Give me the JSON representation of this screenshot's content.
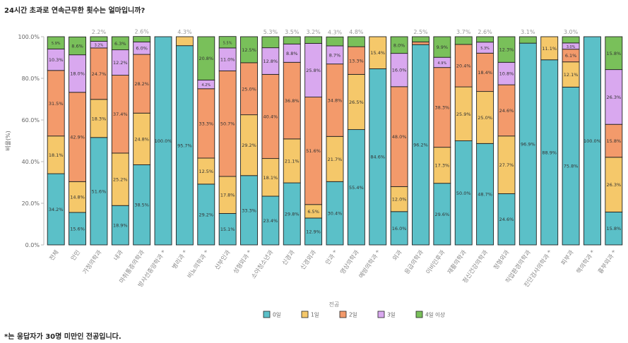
{
  "page": {
    "title": "24시간 초과로 연속근무한 횟수는 얼마입니까?",
    "footnote": "*는 응답자가 30명 미만인 전공입니다."
  },
  "chart_data": {
    "type": "bar",
    "stacked": true,
    "percent": true,
    "title": "",
    "xlabel": "전공",
    "ylabel": "비율(%)",
    "ylim": [
      0,
      100
    ],
    "y_ticks": [
      "0.0%",
      "20.0%",
      "40.0%",
      "60.0%",
      "80.0%",
      "100.0%"
    ],
    "grid": false,
    "legend_position": "bottom",
    "categories": [
      "전체",
      "안민",
      "가정의학과",
      "내과",
      "마취통증의학과",
      "방사선종양학과 *",
      "병리과 *",
      "비뇨의학과 *",
      "산부인과",
      "성형외과 *",
      "소아청소년과",
      "신경과",
      "신경외과",
      "안과 *",
      "영상의학과",
      "예방의학과 *",
      "외과",
      "응급의학과",
      "이비인후과",
      "재활의학과",
      "정신건강의학과",
      "정형외과",
      "직업환경의학과",
      "진단검사의학과 *",
      "피부과",
      "핵의학과 *",
      "흉부외과 *"
    ],
    "series": [
      {
        "name": "0일",
        "color": "#5bc0c8",
        "values": [
          34.2,
          15.6,
          51.6,
          18.9,
          38.5,
          100.0,
          95.7,
          29.2,
          15.1,
          33.3,
          23.4,
          29.8,
          12.9,
          30.4,
          55.4,
          84.6,
          16.0,
          96.2,
          29.6,
          50.0,
          48.7,
          24.6,
          96.9,
          88.9,
          75.8,
          100.0,
          15.8
        ]
      },
      {
        "name": "1일",
        "color": "#f5c86a",
        "values": [
          18.1,
          14.8,
          18.3,
          25.2,
          24.8,
          0,
          4.3,
          12.5,
          17.8,
          29.2,
          18.1,
          21.1,
          6.5,
          21.7,
          26.5,
          15.4,
          12.0,
          0,
          17.3,
          25.9,
          25.0,
          27.7,
          0,
          11.1,
          12.1,
          0,
          26.3
        ]
      },
      {
        "name": "2일",
        "color": "#f39a6b",
        "values": [
          31.5,
          42.9,
          24.7,
          37.4,
          28.2,
          0,
          0,
          33.3,
          50.7,
          25.0,
          40.4,
          36.8,
          51.6,
          34.8,
          13.3,
          0,
          48.0,
          1.3,
          38.3,
          20.4,
          18.4,
          24.6,
          0,
          0,
          6.1,
          0,
          15.8
        ]
      },
      {
        "name": "3일",
        "color": "#d9a8ef",
        "values": [
          10.3,
          18.0,
          3.2,
          12.2,
          6.0,
          0,
          0,
          4.2,
          11.0,
          0,
          12.8,
          8.8,
          25.8,
          8.7,
          0,
          0,
          16.0,
          0,
          4.9,
          0,
          5.3,
          10.8,
          0,
          0,
          3.0,
          0,
          26.3
        ]
      },
      {
        "name": "4일 이상",
        "color": "#79c05a",
        "values": [
          5.9,
          8.6,
          2.2,
          6.3,
          2.6,
          0,
          0,
          20.8,
          5.5,
          12.5,
          5.3,
          3.5,
          3.2,
          4.3,
          4.8,
          0,
          8.0,
          2.5,
          9.9,
          3.7,
          2.6,
          12.3,
          3.1,
          0,
          3.0,
          0,
          15.8
        ]
      }
    ],
    "labels": [
      [
        {
          "t": "5.9%",
          "s": 4,
          "in": true
        },
        {
          "t": "10.3%",
          "s": 3,
          "in": true
        },
        {
          "t": "31.5%",
          "s": 2,
          "in": true
        },
        {
          "t": "18.1%",
          "s": 1,
          "in": true
        },
        {
          "t": "34.2%",
          "s": 0,
          "in": true
        }
      ],
      [
        {
          "t": "8.6%",
          "s": 4,
          "in": true
        },
        {
          "t": "18.0%",
          "s": 3,
          "in": true
        },
        {
          "t": "42.9%",
          "s": 2,
          "in": true
        },
        {
          "t": "14.8%",
          "s": 1,
          "in": true
        },
        {
          "t": "15.6%",
          "s": 0,
          "in": true
        }
      ],
      [
        {
          "t": "2.2%",
          "s": 4,
          "in": false
        },
        {
          "t": "3.2%",
          "s": 3,
          "in": true
        },
        {
          "t": "24.7%",
          "s": 2,
          "in": true
        },
        {
          "t": "18.3%",
          "s": 1,
          "in": true
        },
        {
          "t": "51.6%",
          "s": 0,
          "in": true
        }
      ],
      [
        {
          "t": "6.3%",
          "s": 4,
          "in": true
        },
        {
          "t": "12.2%",
          "s": 3,
          "in": true
        },
        {
          "t": "37.4%",
          "s": 2,
          "in": true
        },
        {
          "t": "25.2%",
          "s": 1,
          "in": true
        },
        {
          "t": "18.9%",
          "s": 0,
          "in": true
        }
      ],
      [
        {
          "t": "2.6%",
          "s": 4,
          "in": false
        },
        {
          "t": "6.0%",
          "s": 3,
          "in": true
        },
        {
          "t": "28.2%",
          "s": 2,
          "in": true
        },
        {
          "t": "24.8%",
          "s": 1,
          "in": true
        },
        {
          "t": "38.5%",
          "s": 0,
          "in": true
        }
      ],
      [
        {
          "t": "100.0%",
          "s": 0,
          "in": true
        }
      ],
      [
        {
          "t": "4.3%",
          "s": 1,
          "in": false
        },
        {
          "t": "95.7%",
          "s": 0,
          "in": true
        }
      ],
      [
        {
          "t": "20.8%",
          "s": 4,
          "in": true
        },
        {
          "t": "4.2%",
          "s": 3,
          "in": true
        },
        {
          "t": "33.3%",
          "s": 2,
          "in": true
        },
        {
          "t": "12.5%",
          "s": 1,
          "in": true
        },
        {
          "t": "29.2%",
          "s": 0,
          "in": true
        }
      ],
      [
        {
          "t": "5.5%",
          "s": 4,
          "in": true
        },
        {
          "t": "11.0%",
          "s": 3,
          "in": true
        },
        {
          "t": "50.7%",
          "s": 2,
          "in": true
        },
        {
          "t": "17.8%",
          "s": 1,
          "in": true
        },
        {
          "t": "15.1%",
          "s": 0,
          "in": true
        }
      ],
      [
        {
          "t": "12.5%",
          "s": 4,
          "in": true
        },
        {
          "t": "25.0%",
          "s": 2,
          "in": true
        },
        {
          "t": "29.2%",
          "s": 1,
          "in": true
        },
        {
          "t": "33.3%",
          "s": 0,
          "in": true
        }
      ],
      [
        {
          "t": "5.3%",
          "s": 4,
          "in": false
        },
        {
          "t": "12.8%",
          "s": 3,
          "in": true
        },
        {
          "t": "40.4%",
          "s": 2,
          "in": true
        },
        {
          "t": "18.1%",
          "s": 1,
          "in": true
        },
        {
          "t": "23.4%",
          "s": 0,
          "in": true
        }
      ],
      [
        {
          "t": "3.5%",
          "s": 4,
          "in": false
        },
        {
          "t": "8.8%",
          "s": 3,
          "in": true
        },
        {
          "t": "36.8%",
          "s": 2,
          "in": true
        },
        {
          "t": "21.1%",
          "s": 1,
          "in": true
        },
        {
          "t": "29.8%",
          "s": 0,
          "in": true
        }
      ],
      [
        {
          "t": "3.2%",
          "s": 4,
          "in": false
        },
        {
          "t": "25.8%",
          "s": 3,
          "in": true
        },
        {
          "t": "51.6%",
          "s": 2,
          "in": true
        },
        {
          "t": "6.5%",
          "s": 1,
          "in": true
        },
        {
          "t": "12.9%",
          "s": 0,
          "in": true
        }
      ],
      [
        {
          "t": "4.3%",
          "s": 4,
          "in": false
        },
        {
          "t": "8.7%",
          "s": 3,
          "in": true
        },
        {
          "t": "34.8%",
          "s": 2,
          "in": true
        },
        {
          "t": "21.7%",
          "s": 1,
          "in": true
        },
        {
          "t": "30.4%",
          "s": 0,
          "in": true
        }
      ],
      [
        {
          "t": "4.8%",
          "s": 4,
          "in": false
        },
        {
          "t": "13.3%",
          "s": 2,
          "in": true
        },
        {
          "t": "26.5%",
          "s": 1,
          "in": true
        },
        {
          "t": "55.4%",
          "s": 0,
          "in": true
        }
      ],
      [
        {
          "t": "15.4%",
          "s": 1,
          "in": true
        },
        {
          "t": "84.6%",
          "s": 0,
          "in": true
        }
      ],
      [
        {
          "t": "8.0%",
          "s": 4,
          "in": true
        },
        {
          "t": "16.0%",
          "s": 3,
          "in": true
        },
        {
          "t": "48.0%",
          "s": 2,
          "in": true
        },
        {
          "t": "12.0%",
          "s": 1,
          "in": true
        },
        {
          "t": "16.0%",
          "s": 0,
          "in": true
        }
      ],
      [
        {
          "t": "2.5%",
          "s": 4,
          "in": false
        },
        {
          "t": "96.2%",
          "s": 0,
          "in": true
        }
      ],
      [
        {
          "t": "9.9%",
          "s": 4,
          "in": true
        },
        {
          "t": "4.9%",
          "s": 3,
          "in": true
        },
        {
          "t": "38.3%",
          "s": 2,
          "in": true
        },
        {
          "t": "17.3%",
          "s": 1,
          "in": true
        },
        {
          "t": "29.6%",
          "s": 0,
          "in": true
        }
      ],
      [
        {
          "t": "3.7%",
          "s": 4,
          "in": false
        },
        {
          "t": "20.4%",
          "s": 2,
          "in": true
        },
        {
          "t": "25.9%",
          "s": 1,
          "in": true
        },
        {
          "t": "50.0%",
          "s": 0,
          "in": true
        }
      ],
      [
        {
          "t": "2.6%",
          "s": 4,
          "in": false
        },
        {
          "t": "5.3%",
          "s": 3,
          "in": true
        },
        {
          "t": "18.4%",
          "s": 2,
          "in": true
        },
        {
          "t": "25.0%",
          "s": 1,
          "in": true
        },
        {
          "t": "48.7%",
          "s": 0,
          "in": true
        }
      ],
      [
        {
          "t": "12.3%",
          "s": 4,
          "in": true
        },
        {
          "t": "10.8%",
          "s": 3,
          "in": true
        },
        {
          "t": "24.6%",
          "s": 2,
          "in": true
        },
        {
          "t": "27.7%",
          "s": 1,
          "in": true
        },
        {
          "t": "24.6%",
          "s": 0,
          "in": true
        }
      ],
      [
        {
          "t": "3.1%",
          "s": 4,
          "in": false
        },
        {
          "t": "96.9%",
          "s": 0,
          "in": true
        }
      ],
      [
        {
          "t": "11.1%",
          "s": 1,
          "in": true
        },
        {
          "t": "88.9%",
          "s": 0,
          "in": true
        }
      ],
      [
        {
          "t": "3.0%",
          "s": 4,
          "in": false
        },
        {
          "t": "3.0%",
          "s": 3,
          "in": true
        },
        {
          "t": "6.1%",
          "s": 2,
          "in": true
        },
        {
          "t": "12.1%",
          "s": 1,
          "in": true
        },
        {
          "t": "75.8%",
          "s": 0,
          "in": true
        }
      ],
      [
        {
          "t": "100.0%",
          "s": 0,
          "in": true
        }
      ],
      [
        {
          "t": "15.8%",
          "s": 4,
          "in": true
        },
        {
          "t": "26.3%",
          "s": 3,
          "in": true
        },
        {
          "t": "15.8%",
          "s": 2,
          "in": true
        },
        {
          "t": "26.3%",
          "s": 1,
          "in": true
        },
        {
          "t": "15.8%",
          "s": 0,
          "in": true
        }
      ]
    ]
  }
}
